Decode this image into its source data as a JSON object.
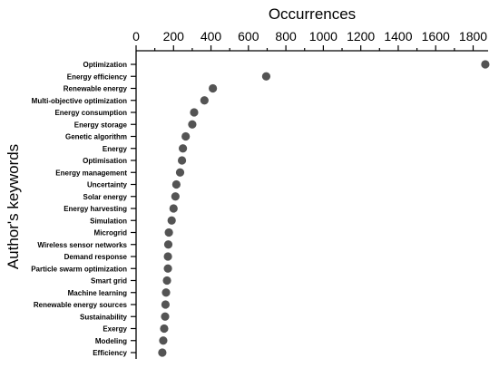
{
  "chart_data": {
    "type": "scatter",
    "title": "Occurrences",
    "xlabel": "Occurrences",
    "ylabel": "Author's keywords",
    "xlim": [
      0,
      1880
    ],
    "x_ticks": [
      0,
      200,
      400,
      600,
      800,
      1000,
      1200,
      1400,
      1600,
      1800
    ],
    "x_axis_position": "top",
    "grid": false,
    "marker_color": "#545454",
    "categories": [
      "Optimization",
      "Energy efficiency",
      "Renewable energy",
      "Multi-objective optimization",
      "Energy consumption",
      "Energy storage",
      "Genetic algorithm",
      "Energy",
      "Optimisation",
      "Energy management",
      "Uncertainty",
      "Solar energy",
      "Energy harvesting",
      "Simulation",
      "Microgrid",
      "Wireless sensor networks",
      "Demand response",
      "Particle swarm optimization",
      "Smart grid",
      "Machine learning",
      "Renewable energy sources",
      "Sustainability",
      "Exergy",
      "Modeling",
      "Efficiency"
    ],
    "values": [
      1865,
      695,
      410,
      365,
      310,
      300,
      265,
      250,
      245,
      235,
      215,
      210,
      200,
      190,
      175,
      172,
      170,
      170,
      165,
      160,
      157,
      155,
      150,
      145,
      140
    ]
  }
}
